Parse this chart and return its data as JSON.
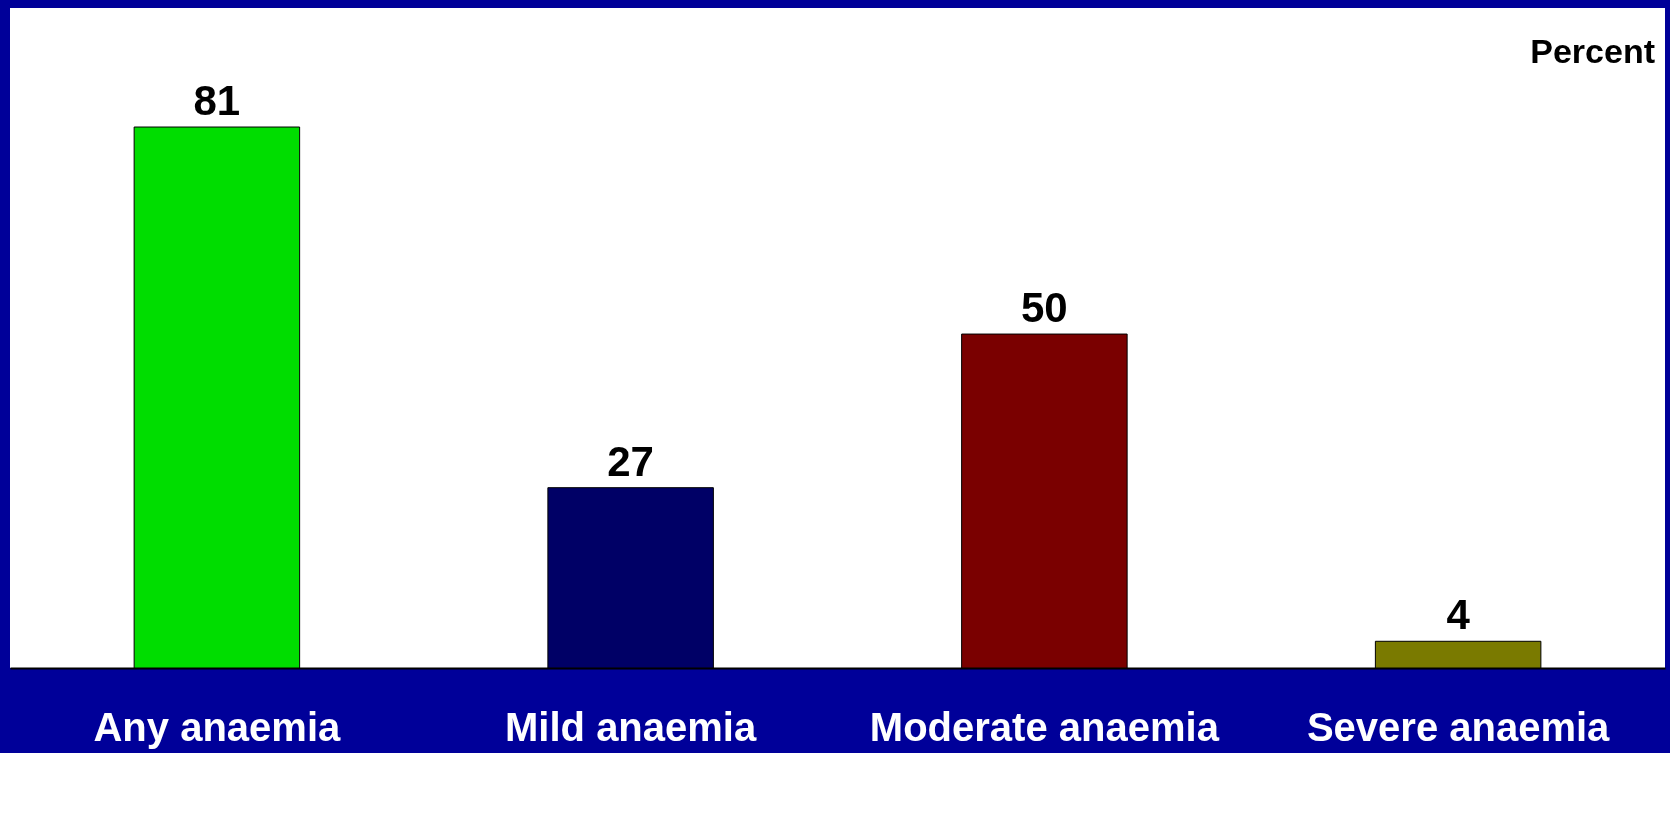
{
  "chart_data": {
    "type": "bar",
    "ylabel": "Percent",
    "categories": [
      "Any anaemia",
      "Mild anaemia",
      "Moderate anaemia",
      "Severe anaemia"
    ],
    "values": [
      81,
      27,
      50,
      4
    ],
    "colors": [
      "#00dd00",
      "#000066",
      "#7a0000",
      "#7a7a00"
    ],
    "data_labels": true,
    "grid": false
  }
}
